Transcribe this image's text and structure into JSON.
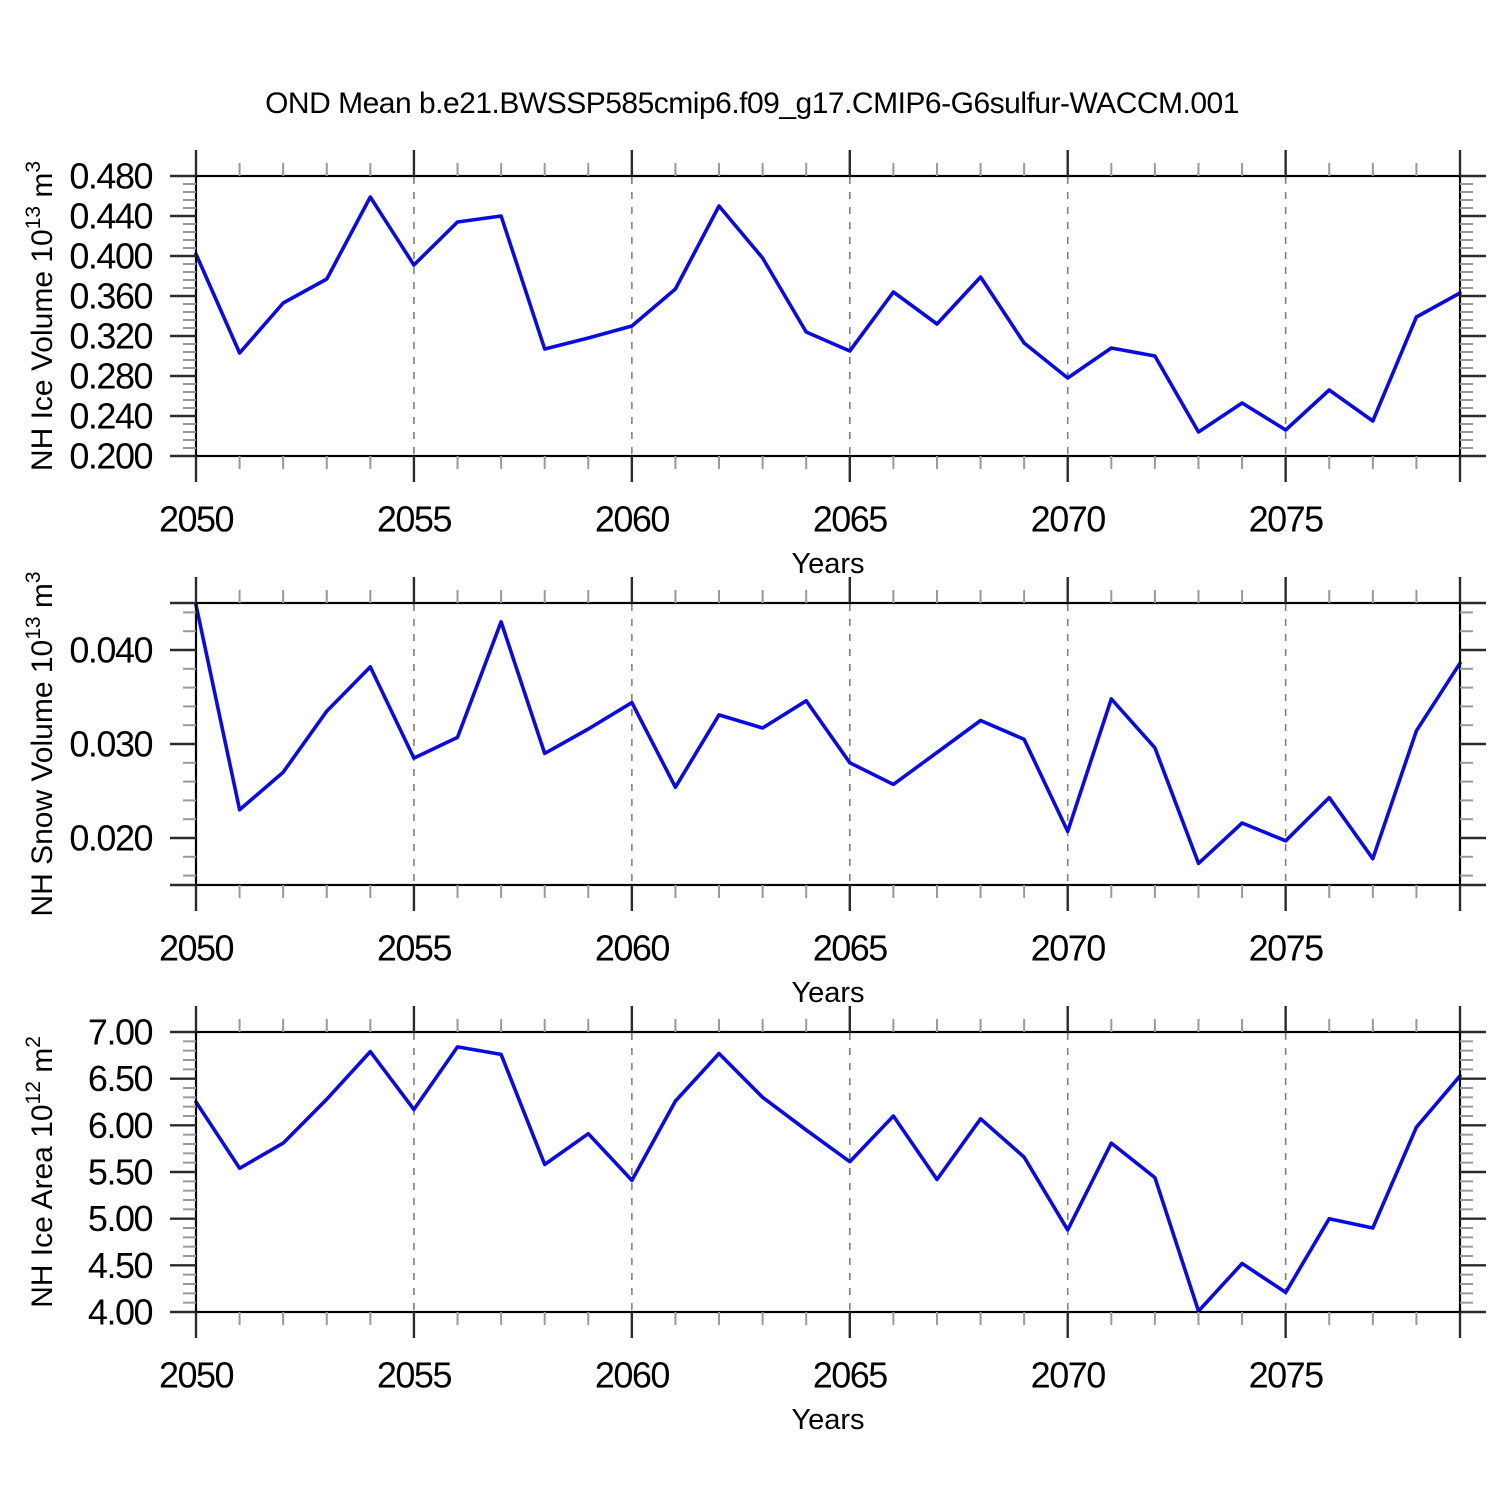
{
  "title": "OND Mean b.e21.BWSSP585cmip6.f09_g17.CMIP6-G6sulfur-WACCM.001",
  "colors": {
    "line": "#0a0ae6",
    "frame": "#000000",
    "major_tick": "#2b2b2b",
    "minor_tick": "#999999",
    "grid": "#808080",
    "text": "#000000",
    "background": "#ffffff"
  },
  "chart_data": [
    {
      "type": "line",
      "series_name": "NH Ice Volume",
      "ylabel": "NH Ice Volume 10^13 m^3",
      "ylabel_parts": [
        {
          "t": "NH Ice Volume 10"
        },
        {
          "t": "13",
          "sup": true
        },
        {
          "t": " m"
        },
        {
          "t": "3",
          "sup": true
        }
      ],
      "xlabel": "Years",
      "xlim": [
        2050,
        2079
      ],
      "ylim": [
        0.2,
        0.48
      ],
      "xticks": [
        2050,
        2055,
        2060,
        2065,
        2070,
        2075
      ],
      "xtick_labels": [
        "2050",
        "2055",
        "2060",
        "2065",
        "2070",
        "2075"
      ],
      "x_minor_step": 1,
      "yticks": [
        0.48,
        0.44,
        0.4,
        0.36,
        0.32,
        0.28,
        0.24,
        0.2
      ],
      "ytick_labels": [
        "0.480",
        "0.440",
        "0.400",
        "0.360",
        "0.320",
        "0.280",
        "0.240",
        "0.200"
      ],
      "y_minor_step": 0.008,
      "grid_x": [
        2055,
        2060,
        2065,
        2070,
        2075
      ],
      "grid_style": "dashed-vertical",
      "x": [
        2050,
        2051,
        2052,
        2053,
        2054,
        2055,
        2056,
        2057,
        2058,
        2059,
        2060,
        2061,
        2062,
        2063,
        2064,
        2065,
        2066,
        2067,
        2068,
        2069,
        2070,
        2071,
        2072,
        2073,
        2074,
        2075,
        2076,
        2077,
        2078,
        2079
      ],
      "values": [
        0.402,
        0.303,
        0.353,
        0.377,
        0.459,
        0.391,
        0.434,
        0.44,
        0.307,
        0.318,
        0.33,
        0.367,
        0.45,
        0.398,
        0.324,
        0.305,
        0.364,
        0.332,
        0.379,
        0.313,
        0.278,
        0.308,
        0.3,
        0.224,
        0.253,
        0.226,
        0.266,
        0.235,
        0.339,
        0.363
      ]
    },
    {
      "type": "line",
      "series_name": "NH Snow Volume",
      "ylabel": "NH Snow Volume 10^13 m^3",
      "ylabel_parts": [
        {
          "t": "NH Snow Volume 10"
        },
        {
          "t": "13",
          "sup": true
        },
        {
          "t": " m"
        },
        {
          "t": "3",
          "sup": true
        }
      ],
      "xlabel": "Years",
      "xlim": [
        2050,
        2079
      ],
      "ylim": [
        0.015,
        0.045
      ],
      "xticks": [
        2050,
        2055,
        2060,
        2065,
        2070,
        2075
      ],
      "xtick_labels": [
        "2050",
        "2055",
        "2060",
        "2065",
        "2070",
        "2075"
      ],
      "x_minor_step": 1,
      "yticks": [
        0.04,
        0.03,
        0.02
      ],
      "ytick_labels": [
        "0.040",
        "0.030",
        "0.020"
      ],
      "y_minor_step": 0.002,
      "grid_x": [
        2055,
        2060,
        2065,
        2070,
        2075
      ],
      "grid_style": "dashed-vertical",
      "x": [
        2050,
        2051,
        2052,
        2053,
        2054,
        2055,
        2056,
        2057,
        2058,
        2059,
        2060,
        2061,
        2062,
        2063,
        2064,
        2065,
        2066,
        2067,
        2068,
        2069,
        2070,
        2071,
        2072,
        2073,
        2074,
        2075,
        2076,
        2077,
        2078,
        2079
      ],
      "values": [
        0.0448,
        0.023,
        0.027,
        0.0335,
        0.0382,
        0.0285,
        0.0307,
        0.043,
        0.029,
        0.0316,
        0.0344,
        0.0254,
        0.0331,
        0.0317,
        0.0346,
        0.028,
        0.0257,
        0.0291,
        0.0325,
        0.0305,
        0.0207,
        0.0348,
        0.0296,
        0.0173,
        0.0216,
        0.0197,
        0.0243,
        0.0178,
        0.0314,
        0.0386
      ]
    },
    {
      "type": "line",
      "series_name": "NH Ice Area",
      "ylabel": "NH Ice Area 10^12 m^2",
      "ylabel_parts": [
        {
          "t": "NH Ice Area 10"
        },
        {
          "t": "12",
          "sup": true
        },
        {
          "t": " m"
        },
        {
          "t": "2",
          "sup": true
        }
      ],
      "xlabel": "Years",
      "xlim": [
        2050,
        2079
      ],
      "ylim": [
        4.0,
        7.0
      ],
      "xticks": [
        2050,
        2055,
        2060,
        2065,
        2070,
        2075
      ],
      "xtick_labels": [
        "2050",
        "2055",
        "2060",
        "2065",
        "2070",
        "2075"
      ],
      "x_minor_step": 1,
      "yticks": [
        7.0,
        6.5,
        6.0,
        5.5,
        5.0,
        4.5,
        4.0
      ],
      "ytick_labels": [
        "7.00",
        "6.50",
        "6.00",
        "5.50",
        "5.00",
        "4.50",
        "4.00"
      ],
      "y_minor_step": 0.1,
      "grid_x": [
        2055,
        2060,
        2065,
        2070,
        2075
      ],
      "grid_style": "dashed-vertical",
      "x": [
        2050,
        2051,
        2052,
        2053,
        2054,
        2055,
        2056,
        2057,
        2058,
        2059,
        2060,
        2061,
        2062,
        2063,
        2064,
        2065,
        2066,
        2067,
        2068,
        2069,
        2070,
        2071,
        2072,
        2073,
        2074,
        2075,
        2076,
        2077,
        2078,
        2079
      ],
      "values": [
        6.25,
        5.54,
        5.81,
        6.28,
        6.79,
        6.17,
        6.84,
        6.76,
        5.58,
        5.91,
        5.41,
        6.26,
        6.77,
        6.3,
        5.95,
        5.61,
        6.1,
        5.42,
        6.07,
        5.66,
        4.88,
        5.81,
        5.44,
        4.01,
        4.52,
        4.21,
        5.0,
        4.9,
        5.98,
        6.53
      ]
    }
  ]
}
